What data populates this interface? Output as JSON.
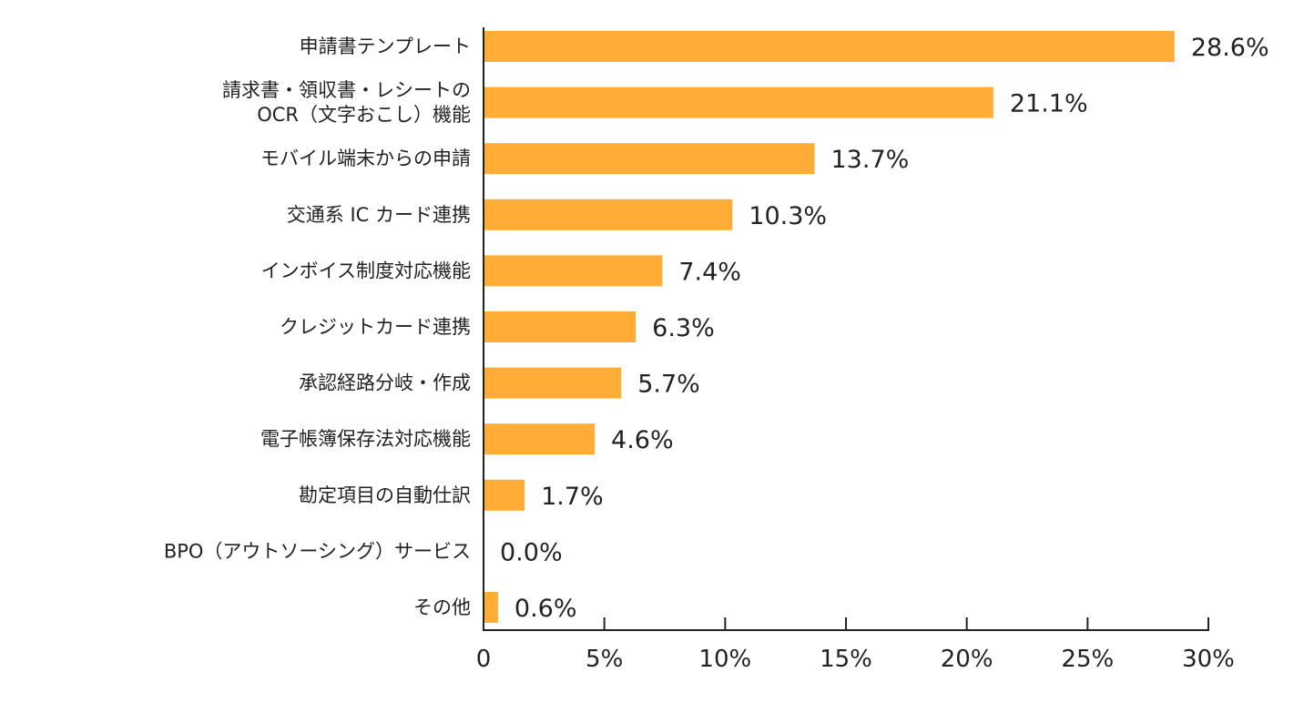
{
  "chart_data": {
    "type": "bar",
    "orientation": "horizontal",
    "categories": [
      [
        "申請書テンプレート"
      ],
      [
        "請求書・領収書・レシートの",
        "OCR（文字おこし）機能"
      ],
      [
        "モバイル端末からの申請"
      ],
      [
        "交通系 IC カード連携"
      ],
      [
        "インボイス制度対応機能"
      ],
      [
        "クレジットカード連携"
      ],
      [
        "承認経路分岐・作成"
      ],
      [
        "電子帳簿保存法対応機能"
      ],
      [
        "勘定項目の自動仕訳"
      ],
      [
        "BPO（アウトソーシング）サービス"
      ],
      [
        "その他"
      ]
    ],
    "values": [
      28.6,
      21.1,
      13.7,
      10.3,
      7.4,
      6.3,
      5.7,
      4.6,
      1.7,
      0.0,
      0.6
    ],
    "value_labels": [
      "28.6%",
      "21.1%",
      "13.7%",
      "10.3%",
      "7.4%",
      "6.3%",
      "5.7%",
      "4.6%",
      "1.7%",
      "0.0%",
      "0.6%"
    ],
    "xlim": [
      0,
      30
    ],
    "xticks": [
      "0",
      "5%",
      "10%",
      "15%",
      "20%",
      "25%",
      "30%"
    ],
    "grid": false,
    "colors": {
      "bar": "#FFAD37",
      "axis": "#222222",
      "text": "#222222"
    }
  }
}
